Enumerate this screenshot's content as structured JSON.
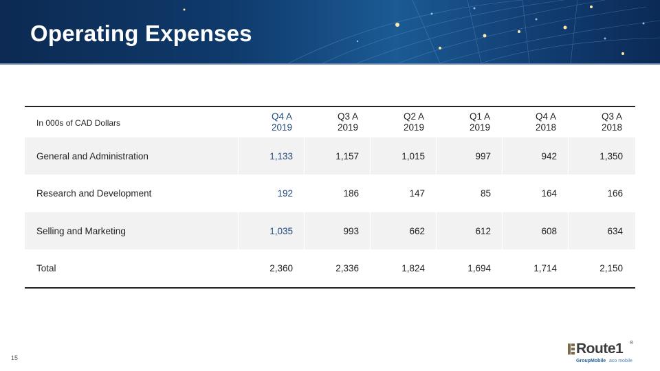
{
  "slide": {
    "title": "Operating Expenses",
    "page_number": "15"
  },
  "table": {
    "header_label": "In 000s of CAD Dollars",
    "columns": [
      {
        "line1": "Q4 A",
        "line2": "2019"
      },
      {
        "line1": "Q3 A",
        "line2": "2019"
      },
      {
        "line1": "Q2 A",
        "line2": "2019"
      },
      {
        "line1": "Q1 A",
        "line2": "2019"
      },
      {
        "line1": "Q4 A",
        "line2": "2018"
      },
      {
        "line1": "Q3 A",
        "line2": "2018"
      }
    ],
    "rows": [
      {
        "label": "General and Administration",
        "values": [
          "1,133",
          "1,157",
          "1,015",
          "997",
          "942",
          "1,350"
        ]
      },
      {
        "label": "Research and Development",
        "values": [
          "192",
          "186",
          "147",
          "85",
          "164",
          "166"
        ]
      },
      {
        "label": "Selling and Marketing",
        "values": [
          "1,035",
          "993",
          "662",
          "612",
          "608",
          "634"
        ]
      },
      {
        "label": "Total",
        "values": [
          "2,360",
          "2,336",
          "1,824",
          "1,694",
          "1,714",
          "2,150"
        ]
      }
    ]
  },
  "logo": {
    "main": "Route1",
    "registered": "®",
    "sub_left": "GroupMobile",
    "sub_right": "aco mobile"
  },
  "colors": {
    "highlight_column": "#1f497d",
    "banner": "#0f3a6c"
  }
}
